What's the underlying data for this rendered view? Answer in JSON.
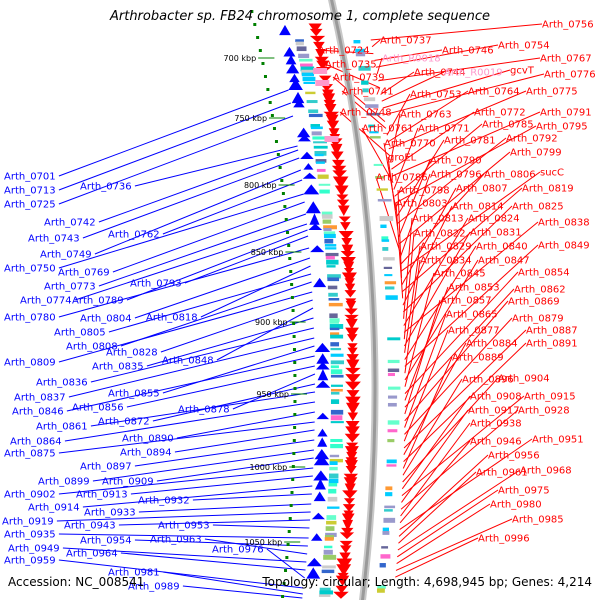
{
  "title": "Arthrobacter sp. FB24 chromosome 1, complete sequence",
  "footer": {
    "accession": "Accession: NC_008541",
    "summary": "Topology: circular; Length: 4,698,945 bp; Genes: 4,214"
  },
  "colors": {
    "forward": "#ff0000",
    "reverse": "#0000ff",
    "rna": "#ff99cc",
    "backbone": "#9a9a9a",
    "tick": "#008000"
  },
  "ticks": [
    "700 kbp",
    "750 kbp",
    "800 kbp",
    "850 kbp",
    "900 kbp",
    "950 kbp",
    "1000 kbp",
    "1050 kbp"
  ],
  "left_labels": [
    "Arth_0701",
    "Arth_0713",
    "Arth_0725",
    "Arth_0736",
    "Arth_0742",
    "Arth_0743",
    "Arth_0749",
    "Arth_0762",
    "Arth_0750",
    "Arth_0769",
    "Arth_0773",
    "Arth_0774",
    "Arth_0789",
    "Arth_0793",
    "Arth_0780",
    "Arth_0804",
    "Arth_0818",
    "Arth_0805",
    "Arth_0808",
    "Arth_0809",
    "Arth_0828",
    "Arth_0848",
    "Arth_0835",
    "Arth_0836",
    "Arth_0837",
    "Arth_0855",
    "Arth_0846",
    "Arth_0856",
    "Arth_0878",
    "Arth_0872",
    "Arth_0861",
    "Arth_0864",
    "Arth_0890",
    "Arth_0875",
    "Arth_0894",
    "Arth_0897",
    "Arth_0899",
    "Arth_0909",
    "Arth_0902",
    "Arth_0913",
    "Arth_0914",
    "Arth_0932",
    "Arth_0933",
    "Arth_0919",
    "Arth_0943",
    "Arth_0953",
    "Arth_0935",
    "Arth_0954",
    "Arth_0963",
    "Arth_0949",
    "Arth_0964",
    "Arth_0976",
    "Arth_0959",
    "Arth_0981",
    "Arth_0989"
  ],
  "right_labels": [
    "Arth_0756",
    "Arth_0737",
    "Arth_0724",
    "Arth_0746",
    "Arth_0754",
    "Arth_R0018",
    "Arth_0767",
    "Arth_0735",
    "Arth_0744",
    "Arth_R0019",
    "gcvT",
    "Arth_0776",
    "Arth_0739",
    "Arth_0741",
    "Arth_0753",
    "Arth_0764",
    "Arth_0775",
    "Arth_0748",
    "Arth_0763",
    "Arth_0772",
    "Arth_0791",
    "Arth_0761",
    "Arth_0771",
    "Arth_0785",
    "Arth_0795",
    "Arth_0770",
    "Arth_0781",
    "Arth_0792",
    "groEL",
    "Arth_0790",
    "Arth_0799",
    "Arth_0786",
    "Arth_0796",
    "Arth_0806",
    "sucC",
    "Arth_0798",
    "Arth_0807",
    "Arth_0819",
    "Arth_0803",
    "Arth_0814",
    "Arth_0825",
    "Arth_0813",
    "Arth_0824",
    "Arth_0838",
    "Arth_0822",
    "Arth_0831",
    "Arth_0829",
    "Arth_0840",
    "Arth_0849",
    "Arth_0834",
    "Arth_0847",
    "Arth_0845",
    "Arth_0854",
    "Arth_0853",
    "Arth_0862",
    "Arth_0857",
    "Arth_0869",
    "Arth_0865",
    "Arth_0879",
    "Arth_0877",
    "Arth_0887",
    "Arth_0884",
    "Arth_0891",
    "Arth_0889",
    "Arth_0896",
    "Arth_0904",
    "Arth_0908",
    "Arth_0915",
    "Arth_0917",
    "Arth_0928",
    "Arth_0938",
    "Arth_0946",
    "Arth_0951",
    "Arth_0956",
    "Arth_0961",
    "Arth_0968",
    "Arth_0975",
    "Arth_0980",
    "Arth_0985",
    "Arth_0996"
  ],
  "pink_labels": [
    "Arth_R0018",
    "Arth_R0019"
  ]
}
